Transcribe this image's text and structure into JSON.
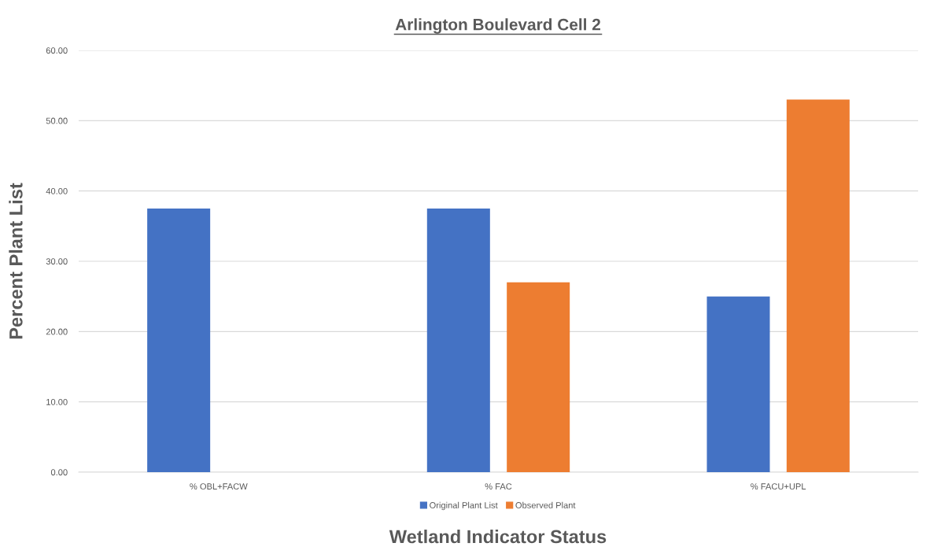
{
  "chart_data": {
    "type": "bar",
    "title": "Arlington Boulevard Cell 2",
    "xlabel": "Wetland Indicator Status",
    "ylabel": "Percent Plant List",
    "categories": [
      "% OBL+FACW",
      "% FAC",
      "% FACU+UPL"
    ],
    "series": [
      {
        "name": "Original Plant List",
        "color": "#4472c4",
        "values": [
          37.5,
          37.5,
          25
        ]
      },
      {
        "name": "Observed Plant",
        "color": "#ed7d31",
        "values": [
          0,
          27,
          53
        ]
      }
    ],
    "ylim": [
      0,
      60
    ],
    "yticks": [
      {
        "value": 0,
        "label": "0.00"
      },
      {
        "value": 10,
        "label": "10.00"
      },
      {
        "value": 20,
        "label": "20.00"
      },
      {
        "value": 30,
        "label": "30.00"
      },
      {
        "value": 40,
        "label": "40.00"
      },
      {
        "value": 50,
        "label": "50.00"
      },
      {
        "value": 60,
        "label": "60.00"
      }
    ],
    "grid": "y",
    "legend": "bottom"
  }
}
